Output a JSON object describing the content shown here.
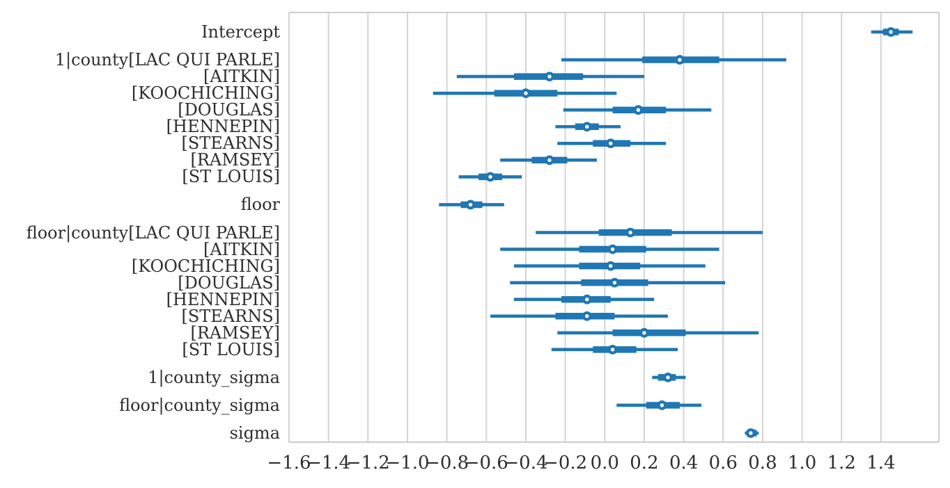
{
  "figure": {
    "kind": "forest-plot",
    "background": "#ffffff"
  },
  "chart_data": {
    "type": "forest",
    "orientation": "horizontal",
    "title": "",
    "xlabel": "",
    "ylabel": "",
    "legend": null,
    "grid": "vertical",
    "xlim": [
      -1.6,
      1.69
    ],
    "x_ticks": [
      -1.6,
      -1.4,
      -1.2,
      -1.0,
      -0.8,
      -0.6,
      -0.4,
      -0.2,
      0.0,
      0.2,
      0.4,
      0.6,
      0.8,
      1.0,
      1.2,
      1.4
    ],
    "x_tick_labels": [
      "−1.6",
      "−1.4",
      "−1.2",
      "−1.0",
      "−0.8",
      "−0.6",
      "−0.4",
      "−0.2",
      "0.0",
      "0.2",
      "0.4",
      "0.6",
      "0.8",
      "1.0",
      "1.2",
      "1.4"
    ],
    "rows": [
      {
        "label": "Intercept",
        "group": 0,
        "lo": 1.35,
        "q1": 1.41,
        "median": 1.45,
        "q3": 1.49,
        "hi": 1.56
      },
      {
        "label": "1|county[LAC QUI PARLE]",
        "group": 1,
        "lo": -0.22,
        "q1": 0.19,
        "median": 0.38,
        "q3": 0.58,
        "hi": 0.92
      },
      {
        "label": "[AITKIN]",
        "group": 1,
        "lo": -0.75,
        "q1": -0.46,
        "median": -0.28,
        "q3": -0.11,
        "hi": 0.2
      },
      {
        "label": "[KOOCHICHING]",
        "group": 1,
        "lo": -0.87,
        "q1": -0.56,
        "median": -0.4,
        "q3": -0.24,
        "hi": 0.06
      },
      {
        "label": "[DOUGLAS]",
        "group": 1,
        "lo": -0.21,
        "q1": 0.04,
        "median": 0.17,
        "q3": 0.31,
        "hi": 0.54
      },
      {
        "label": "[HENNEPIN]",
        "group": 1,
        "lo": -0.25,
        "q1": -0.15,
        "median": -0.09,
        "q3": -0.03,
        "hi": 0.08
      },
      {
        "label": "[STEARNS]",
        "group": 1,
        "lo": -0.24,
        "q1": -0.06,
        "median": 0.03,
        "q3": 0.13,
        "hi": 0.31
      },
      {
        "label": "[RAMSEY]",
        "group": 1,
        "lo": -0.53,
        "q1": -0.37,
        "median": -0.28,
        "q3": -0.19,
        "hi": -0.04
      },
      {
        "label": "[ST LOUIS]",
        "group": 1,
        "lo": -0.74,
        "q1": -0.64,
        "median": -0.58,
        "q3": -0.52,
        "hi": -0.42
      },
      {
        "label": "floor",
        "group": 2,
        "lo": -0.84,
        "q1": -0.73,
        "median": -0.68,
        "q3": -0.62,
        "hi": -0.51
      },
      {
        "label": "floor|county[LAC QUI PARLE]",
        "group": 3,
        "lo": -0.35,
        "q1": -0.03,
        "median": 0.13,
        "q3": 0.34,
        "hi": 0.8
      },
      {
        "label": "[AITKIN]",
        "group": 3,
        "lo": -0.53,
        "q1": -0.13,
        "median": 0.04,
        "q3": 0.21,
        "hi": 0.58
      },
      {
        "label": "[KOOCHICHING]",
        "group": 3,
        "lo": -0.46,
        "q1": -0.13,
        "median": 0.03,
        "q3": 0.18,
        "hi": 0.51
      },
      {
        "label": "[DOUGLAS]",
        "group": 3,
        "lo": -0.48,
        "q1": -0.12,
        "median": 0.05,
        "q3": 0.22,
        "hi": 0.61
      },
      {
        "label": "[HENNEPIN]",
        "group": 3,
        "lo": -0.46,
        "q1": -0.22,
        "median": -0.09,
        "q3": 0.03,
        "hi": 0.25
      },
      {
        "label": "[STEARNS]",
        "group": 3,
        "lo": -0.58,
        "q1": -0.25,
        "median": -0.09,
        "q3": 0.05,
        "hi": 0.32
      },
      {
        "label": "[RAMSEY]",
        "group": 3,
        "lo": -0.24,
        "q1": 0.04,
        "median": 0.2,
        "q3": 0.41,
        "hi": 0.78
      },
      {
        "label": "[ST LOUIS]",
        "group": 3,
        "lo": -0.27,
        "q1": -0.06,
        "median": 0.04,
        "q3": 0.16,
        "hi": 0.37
      },
      {
        "label": "1|county_sigma",
        "group": 4,
        "lo": 0.24,
        "q1": 0.27,
        "median": 0.32,
        "q3": 0.36,
        "hi": 0.41
      },
      {
        "label": "floor|county_sigma",
        "group": 5,
        "lo": 0.06,
        "q1": 0.21,
        "median": 0.29,
        "q3": 0.38,
        "hi": 0.49
      },
      {
        "label": "sigma",
        "group": 6,
        "lo": 0.71,
        "q1": 0.72,
        "median": 0.74,
        "q3": 0.77,
        "hi": 0.78
      }
    ],
    "colors": {
      "interval": "#1f77b4",
      "marker_fill": "#ffffff",
      "grid": "#d4d4d4",
      "spine": "#cccccc",
      "text": "#2e2e2e"
    }
  }
}
